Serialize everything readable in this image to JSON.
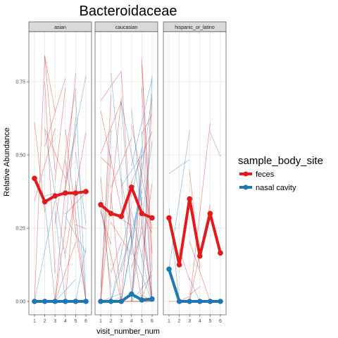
{
  "chart_data": {
    "type": "line",
    "title": "Bacteroidaceae",
    "xlabel": "visit_number_num",
    "ylabel": "Relative Abundance",
    "x_ticks": [
      1,
      2,
      3,
      4,
      5,
      6
    ],
    "y_ticks": [
      "0.00",
      "0.25",
      "0.50",
      "0.75"
    ],
    "ylim": [
      0,
      0.88
    ],
    "xlim": [
      1,
      6
    ],
    "grid": true,
    "legend": {
      "title": "sample_body_site",
      "placement": "right",
      "entries": [
        {
          "name": "feces",
          "color": "#E31A1C"
        },
        {
          "name": "nasal cavity",
          "color": "#1F78B4"
        }
      ]
    },
    "facets": [
      {
        "label": "asian",
        "series": [
          {
            "name": "feces",
            "x": [
              1,
              2,
              3,
              4,
              5,
              6
            ],
            "values": [
              0.42,
              0.34,
              0.36,
              0.37,
              0.37,
              0.375
            ]
          },
          {
            "name": "nasal cavity",
            "x": [
              1,
              2,
              3,
              4,
              5,
              6
            ],
            "values": [
              0.0,
              0.0,
              0.0,
              0.0,
              0.0,
              0.0
            ]
          }
        ]
      },
      {
        "label": "caucasian",
        "series": [
          {
            "name": "feces",
            "x": [
              1,
              2,
              3,
              4,
              5,
              6
            ],
            "values": [
              0.33,
              0.3,
              0.29,
              0.39,
              0.3,
              0.285
            ]
          },
          {
            "name": "nasal cavity",
            "x": [
              1,
              2,
              3,
              4,
              5,
              6
            ],
            "values": [
              0.0,
              0.0,
              0.0,
              0.025,
              0.005,
              0.008
            ]
          }
        ]
      },
      {
        "label": "hispanic_or_latino",
        "series": [
          {
            "name": "feces",
            "x": [
              1,
              2,
              3,
              4,
              5,
              6
            ],
            "values": [
              0.285,
              0.125,
              0.35,
              0.155,
              0.3,
              0.165
            ]
          },
          {
            "name": "nasal cavity",
            "x": [
              1,
              2,
              3,
              4,
              5,
              6
            ],
            "values": [
              0.11,
              0.0,
              0.0,
              0.0,
              0.0,
              0.0
            ]
          }
        ]
      }
    ]
  }
}
